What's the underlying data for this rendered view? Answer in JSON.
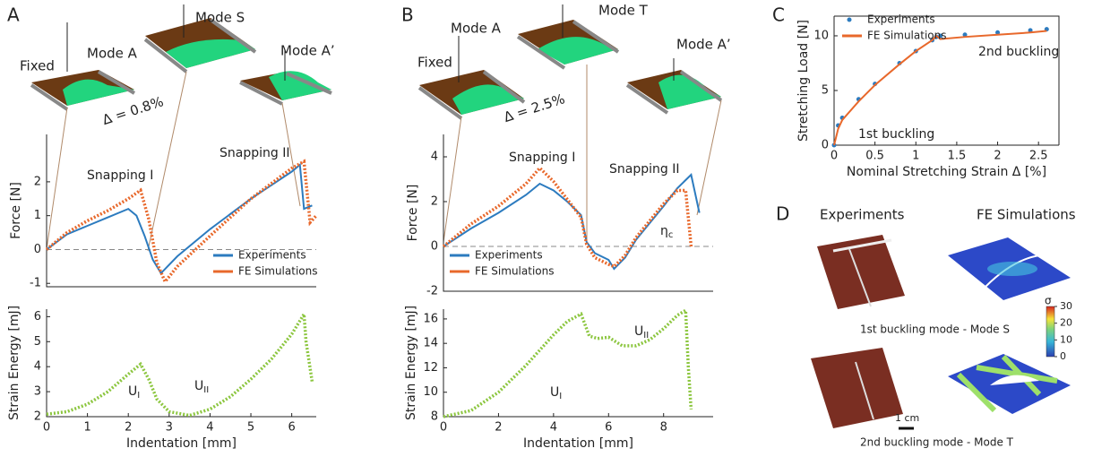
{
  "panels": [
    "A",
    "B",
    "C",
    "D"
  ],
  "diagrams": {
    "A": {
      "labels": [
        "Fixed",
        "Mode A",
        "Mode S",
        "Mode A’"
      ],
      "strain": "Δ = 0.8%"
    },
    "B": {
      "labels": [
        "Fixed",
        "Mode A",
        "Mode T",
        "Mode A’"
      ],
      "strain": "Δ = 2.5%"
    }
  },
  "chart_data": [
    {
      "type": "line",
      "ylabel": "Force [N]",
      "xlim": [
        0,
        6.6
      ],
      "ylim": [
        -1.1,
        3.4
      ],
      "yticks": [
        -1,
        0,
        1,
        2
      ],
      "legend": "lower right",
      "annotations": [
        {
          "text": "Snapping I"
        },
        {
          "text": "Snapping II"
        }
      ],
      "series": [
        {
          "name": "Experiments",
          "color": "#2c7bbf",
          "x": [
            0,
            0.5,
            1,
            1.5,
            2,
            2.2,
            2.4,
            2.6,
            2.8,
            3.2,
            4,
            5,
            6,
            6.2,
            6.3,
            6.5
          ],
          "values": [
            0,
            0.45,
            0.7,
            0.95,
            1.2,
            1.0,
            0.4,
            -0.3,
            -0.7,
            -0.2,
            0.6,
            1.5,
            2.3,
            2.5,
            1.2,
            1.3
          ]
        },
        {
          "name": "FE Simulations",
          "color": "#e8682b",
          "x": [
            0,
            0.5,
            1,
            1.5,
            2,
            2.3,
            2.5,
            2.7,
            2.9,
            3.2,
            4,
            5,
            6,
            6.3,
            6.45,
            6.6
          ],
          "values": [
            0,
            0.5,
            0.85,
            1.15,
            1.5,
            1.75,
            0.9,
            -0.4,
            -0.95,
            -0.5,
            0.4,
            1.5,
            2.4,
            2.6,
            0.8,
            1.0
          ]
        }
      ]
    },
    {
      "type": "line",
      "ylabel": "Strain Energy [mJ]",
      "xlabel": "Indentation [mm]",
      "xlim": [
        0,
        6.6
      ],
      "xticks": [
        0,
        1,
        2,
        3,
        4,
        5,
        6
      ],
      "ylim": [
        2,
        6.3
      ],
      "yticks": [
        2,
        3,
        4,
        5,
        6
      ],
      "annotations": [
        {
          "text": "U",
          "sub": "I"
        },
        {
          "text": "U",
          "sub": "II"
        }
      ],
      "series": [
        {
          "name": "FE Simulations",
          "color": "#8cc63f",
          "x": [
            0,
            0.5,
            1,
            1.5,
            2,
            2.3,
            2.5,
            2.7,
            3,
            3.5,
            4,
            4.5,
            5,
            5.5,
            6,
            6.3,
            6.35,
            6.5
          ],
          "values": [
            2.1,
            2.2,
            2.5,
            3.0,
            3.7,
            4.1,
            3.5,
            2.7,
            2.2,
            2.05,
            2.3,
            2.8,
            3.5,
            4.3,
            5.3,
            6.1,
            5.0,
            3.4
          ]
        }
      ]
    },
    {
      "type": "line",
      "ylabel": "Force [N]",
      "xlim": [
        0,
        9.8
      ],
      "ylim": [
        -2,
        5
      ],
      "yticks": [
        -2,
        0,
        2,
        4
      ],
      "legend": "lower left",
      "annotations": [
        {
          "text": "Snapping I"
        },
        {
          "text": "Snapping II"
        },
        {
          "text": "η",
          "sub": "c"
        }
      ],
      "series": [
        {
          "name": "Experiments",
          "color": "#2c7bbf",
          "x": [
            0,
            1,
            2,
            3,
            3.5,
            4,
            4.5,
            5,
            5.2,
            5.5,
            6,
            6.2,
            6.6,
            7,
            8,
            8.5,
            9,
            9.3
          ],
          "values": [
            0,
            0.8,
            1.5,
            2.3,
            2.8,
            2.5,
            2,
            1.4,
            0.2,
            -0.3,
            -0.6,
            -1,
            -0.5,
            0.3,
            1.8,
            2.6,
            3.2,
            1.5
          ]
        },
        {
          "name": "FE Simulations",
          "color": "#e8682b",
          "x": [
            0,
            1,
            2,
            3,
            3.5,
            4,
            4.5,
            5,
            5.2,
            5.5,
            6,
            6.2,
            6.6,
            7,
            8,
            8.5,
            8.8,
            9
          ],
          "values": [
            0,
            1,
            1.8,
            2.8,
            3.5,
            2.9,
            2.1,
            1.3,
            0.1,
            -0.5,
            -0.8,
            -0.9,
            -0.4,
            0.4,
            1.9,
            2.5,
            2.5,
            0
          ]
        }
      ]
    },
    {
      "type": "line",
      "ylabel": "Strain Energy [mJ]",
      "xlabel": "Indentation [mm]",
      "xlim": [
        0,
        9.8
      ],
      "xticks": [
        0,
        2,
        4,
        6,
        8
      ],
      "ylim": [
        8,
        16.8
      ],
      "yticks": [
        8,
        10,
        12,
        14,
        16
      ],
      "annotations": [
        {
          "text": "U",
          "sub": "I"
        },
        {
          "text": "U",
          "sub": "II"
        }
      ],
      "series": [
        {
          "name": "FE Simulations",
          "color": "#8cc63f",
          "x": [
            0,
            1,
            2,
            3,
            4,
            4.5,
            5,
            5.3,
            5.6,
            6,
            6.5,
            7,
            7.5,
            8,
            8.5,
            8.8,
            8.9,
            9
          ],
          "values": [
            8,
            8.5,
            10,
            12.2,
            14.7,
            15.8,
            16.4,
            14.6,
            14.4,
            14.5,
            13.8,
            13.8,
            14.3,
            15.2,
            16.3,
            16.7,
            12,
            8.6
          ]
        }
      ]
    },
    {
      "type": "line",
      "ylabel": "Stretching Load [N]",
      "xlabel": "Nominal Stretching Strain Δ [%]",
      "xlim": [
        0,
        2.75
      ],
      "xticks": [
        0,
        0.5,
        1,
        1.5,
        2,
        2.5
      ],
      "ylim": [
        0,
        11.8
      ],
      "yticks": [
        0,
        5,
        10
      ],
      "legend": "upper left",
      "annotations": [
        {
          "text": "1st buckling"
        },
        {
          "text": "2nd buckling"
        }
      ],
      "series": [
        {
          "name": "Experiments",
          "color": "#2c7bbf",
          "mode": "markers",
          "x": [
            0,
            0.05,
            0.1,
            0.3,
            0.5,
            0.8,
            1.0,
            1.2,
            1.25,
            1.3,
            1.6,
            2,
            2.4,
            2.6
          ],
          "values": [
            0,
            1.8,
            2.5,
            4.2,
            5.6,
            7.5,
            8.6,
            9.6,
            9.9,
            10.0,
            10.1,
            10.3,
            10.5,
            10.6
          ]
        },
        {
          "name": "FE Simulations",
          "color": "#e8682b",
          "x": [
            0,
            0.05,
            0.1,
            0.3,
            0.5,
            0.8,
            1.0,
            1.2,
            1.25,
            1.3,
            1.6,
            2,
            2.4,
            2.6
          ],
          "values": [
            0,
            1.5,
            2.3,
            4.0,
            5.5,
            7.4,
            8.6,
            9.6,
            10,
            9.7,
            9.9,
            10.1,
            10.3,
            10.45
          ]
        }
      ]
    }
  ],
  "figure_d": {
    "column_titles": [
      "Experiments",
      "FE Simulations"
    ],
    "captions": [
      "1st buckling mode - Mode S",
      "2nd buckling mode - Mode T"
    ],
    "scale_bar": "1 cm",
    "colorbar": {
      "label": "σ",
      "lim": [
        0,
        30
      ],
      "ticks": [
        0,
        10,
        20,
        30
      ]
    }
  }
}
